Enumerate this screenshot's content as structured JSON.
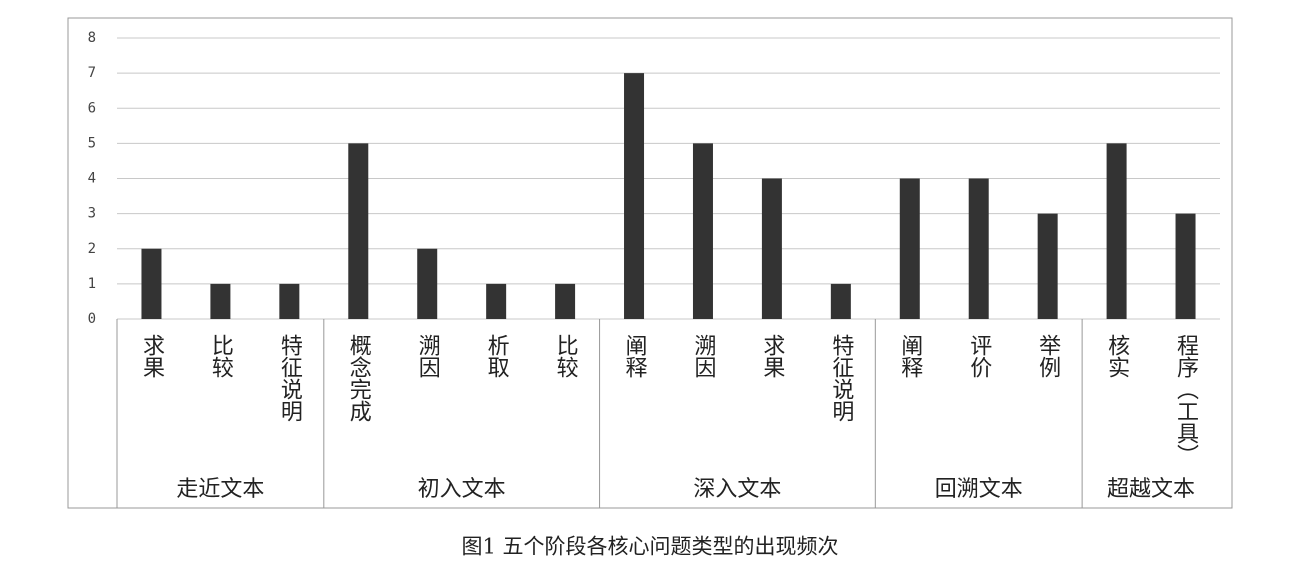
{
  "chart_data": {
    "type": "bar",
    "caption": "图1  五个阶段各核心问题类型的出现频次",
    "color": "#333333",
    "ylim": [
      0,
      8
    ],
    "yticks": [
      0,
      1,
      2,
      3,
      4,
      5,
      6,
      7,
      8
    ],
    "grid": true,
    "groups": [
      {
        "name": "走近文本",
        "categories": [
          "求果",
          "比较",
          "特征说明"
        ],
        "values": [
          2,
          1,
          1
        ]
      },
      {
        "name": "初入文本",
        "categories": [
          "概念完成",
          "溯因",
          "析取",
          "比较"
        ],
        "values": [
          5,
          2,
          1,
          1
        ]
      },
      {
        "name": "深入文本",
        "categories": [
          "阐释",
          "溯因",
          "求果",
          "特征说明"
        ],
        "values": [
          7,
          5,
          4,
          1
        ]
      },
      {
        "name": "回溯文本",
        "categories": [
          "阐释",
          "评价",
          "举例"
        ],
        "values": [
          4,
          4,
          3
        ]
      },
      {
        "name": "超越文本",
        "categories": [
          "核实",
          "程序（工具）"
        ],
        "values": [
          5,
          3
        ]
      }
    ]
  }
}
